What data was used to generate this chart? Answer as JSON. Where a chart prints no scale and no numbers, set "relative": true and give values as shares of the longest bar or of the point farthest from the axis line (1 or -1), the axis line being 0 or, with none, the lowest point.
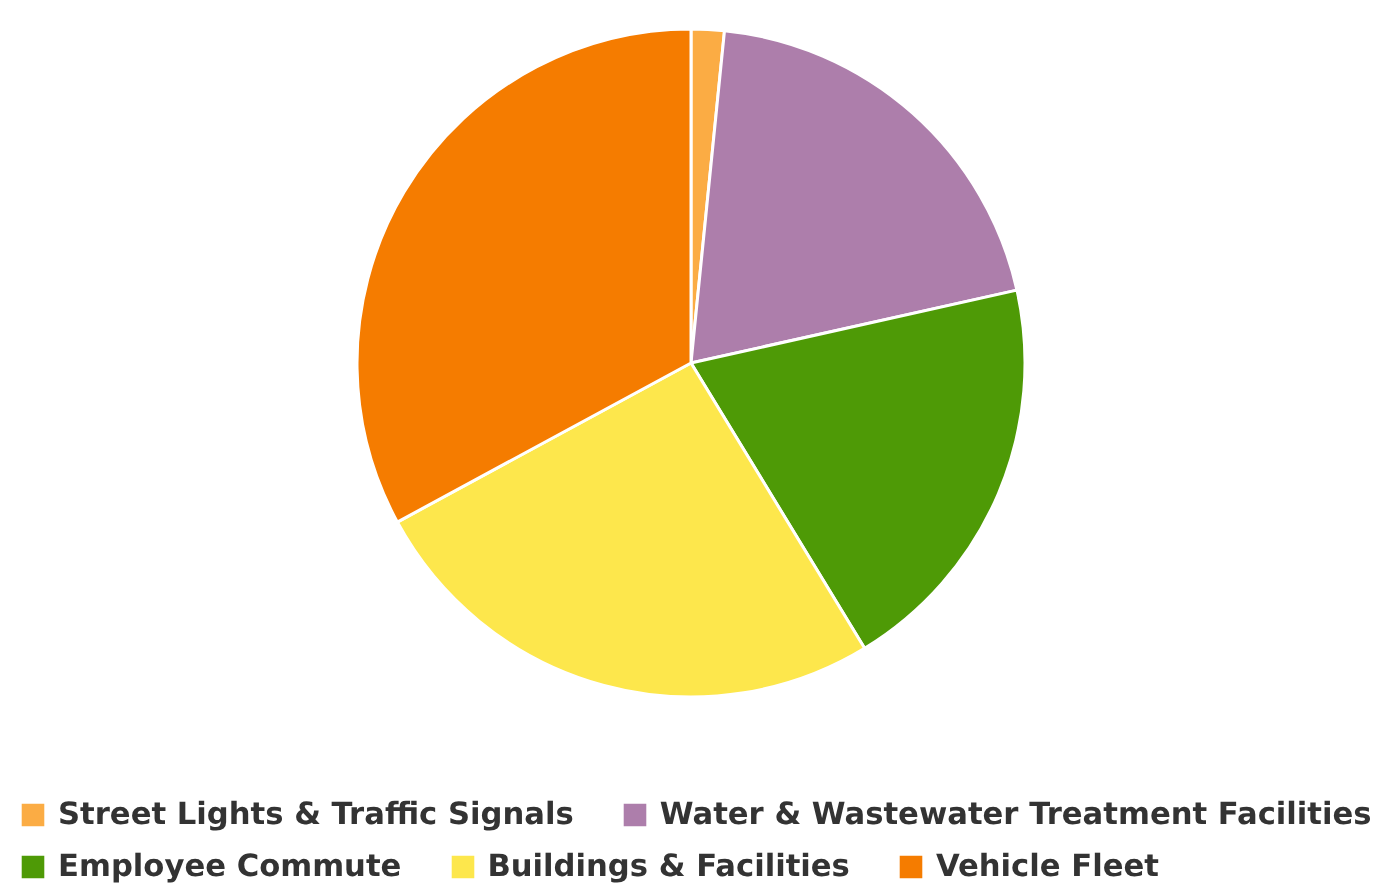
{
  "chart_data": {
    "type": "pie",
    "relative": true,
    "legend": "bottom",
    "categories": [
      "Street Lights & Traffic Signals",
      "Water & Wastewater Treatment Facilities",
      "Employee Commute",
      "Buildings & Facilities",
      "Vehicle Fleet"
    ],
    "values": [
      1.6,
      19.9,
      19.8,
      25.8,
      32.9
    ],
    "colors": [
      "#fbac44",
      "#ad7eab",
      "#4e9a06",
      "#fde74c",
      "#f57c00"
    ]
  }
}
